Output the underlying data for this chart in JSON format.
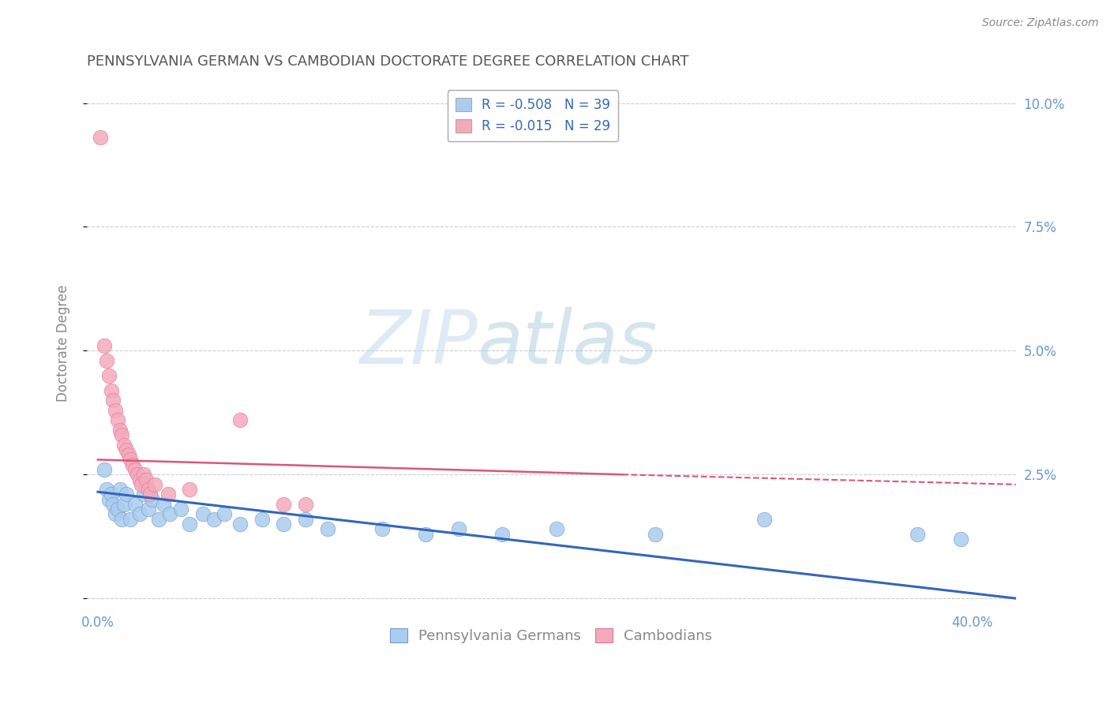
{
  "title": "PENNSYLVANIA GERMAN VS CAMBODIAN DOCTORATE DEGREE CORRELATION CHART",
  "source": "Source: ZipAtlas.com",
  "ylabel": "Doctorate Degree",
  "xlim": [
    -0.005,
    0.42
  ],
  "ylim": [
    -0.002,
    0.105
  ],
  "yticks": [
    0.0,
    0.025,
    0.05,
    0.075,
    0.1
  ],
  "ytick_labels": [
    "",
    "2.5%",
    "5.0%",
    "7.5%",
    "10.0%"
  ],
  "xticks": [
    0.0,
    0.4
  ],
  "xtick_labels": [
    "0.0%",
    "40.0%"
  ],
  "legend_top": [
    {
      "label": "R = -0.508   N = 39",
      "color": "#aaccee"
    },
    {
      "label": "R = -0.015   N = 29",
      "color": "#f4aabb"
    }
  ],
  "blue_scatter": [
    [
      0.003,
      0.026
    ],
    [
      0.004,
      0.022
    ],
    [
      0.005,
      0.02
    ],
    [
      0.006,
      0.021
    ],
    [
      0.007,
      0.019
    ],
    [
      0.008,
      0.017
    ],
    [
      0.009,
      0.018
    ],
    [
      0.01,
      0.022
    ],
    [
      0.011,
      0.016
    ],
    [
      0.012,
      0.019
    ],
    [
      0.013,
      0.021
    ],
    [
      0.015,
      0.016
    ],
    [
      0.017,
      0.019
    ],
    [
      0.019,
      0.017
    ],
    [
      0.021,
      0.021
    ],
    [
      0.023,
      0.018
    ],
    [
      0.025,
      0.02
    ],
    [
      0.028,
      0.016
    ],
    [
      0.03,
      0.019
    ],
    [
      0.033,
      0.017
    ],
    [
      0.038,
      0.018
    ],
    [
      0.042,
      0.015
    ],
    [
      0.048,
      0.017
    ],
    [
      0.053,
      0.016
    ],
    [
      0.058,
      0.017
    ],
    [
      0.065,
      0.015
    ],
    [
      0.075,
      0.016
    ],
    [
      0.085,
      0.015
    ],
    [
      0.095,
      0.016
    ],
    [
      0.105,
      0.014
    ],
    [
      0.13,
      0.014
    ],
    [
      0.15,
      0.013
    ],
    [
      0.165,
      0.014
    ],
    [
      0.185,
      0.013
    ],
    [
      0.21,
      0.014
    ],
    [
      0.255,
      0.013
    ],
    [
      0.305,
      0.016
    ],
    [
      0.375,
      0.013
    ],
    [
      0.395,
      0.012
    ]
  ],
  "pink_scatter": [
    [
      0.001,
      0.093
    ],
    [
      0.003,
      0.051
    ],
    [
      0.004,
      0.048
    ],
    [
      0.005,
      0.045
    ],
    [
      0.006,
      0.042
    ],
    [
      0.007,
      0.04
    ],
    [
      0.008,
      0.038
    ],
    [
      0.009,
      0.036
    ],
    [
      0.01,
      0.034
    ],
    [
      0.011,
      0.033
    ],
    [
      0.012,
      0.031
    ],
    [
      0.013,
      0.03
    ],
    [
      0.014,
      0.029
    ],
    [
      0.015,
      0.028
    ],
    [
      0.016,
      0.027
    ],
    [
      0.017,
      0.026
    ],
    [
      0.018,
      0.025
    ],
    [
      0.019,
      0.024
    ],
    [
      0.02,
      0.023
    ],
    [
      0.021,
      0.025
    ],
    [
      0.022,
      0.024
    ],
    [
      0.023,
      0.022
    ],
    [
      0.024,
      0.021
    ],
    [
      0.026,
      0.023
    ],
    [
      0.032,
      0.021
    ],
    [
      0.042,
      0.022
    ],
    [
      0.065,
      0.036
    ],
    [
      0.085,
      0.019
    ],
    [
      0.095,
      0.019
    ]
  ],
  "blue_line": {
    "x_start": 0.0,
    "x_end": 0.42,
    "y_start": 0.0215,
    "y_end": 0.0
  },
  "pink_line_solid": {
    "x_start": 0.0,
    "x_end": 0.24,
    "y_start": 0.028,
    "y_end": 0.025
  },
  "pink_line_dashed": {
    "x_start": 0.24,
    "x_end": 0.42,
    "y_start": 0.025,
    "y_end": 0.023
  },
  "blue_dot_color": "#aaccee",
  "blue_dot_edge": "#7799cc",
  "pink_dot_color": "#f4aabb",
  "pink_dot_edge": "#dd7799",
  "blue_line_color": "#3366bb",
  "pink_line_color": "#dd5577",
  "background_color": "#ffffff",
  "grid_color": "#cccccc",
  "title_color": "#555555",
  "axis_label_color": "#888888",
  "tick_color": "#6699cc",
  "watermark_zip_color": "#c8ddf0",
  "watermark_atlas_color": "#aaccdd"
}
